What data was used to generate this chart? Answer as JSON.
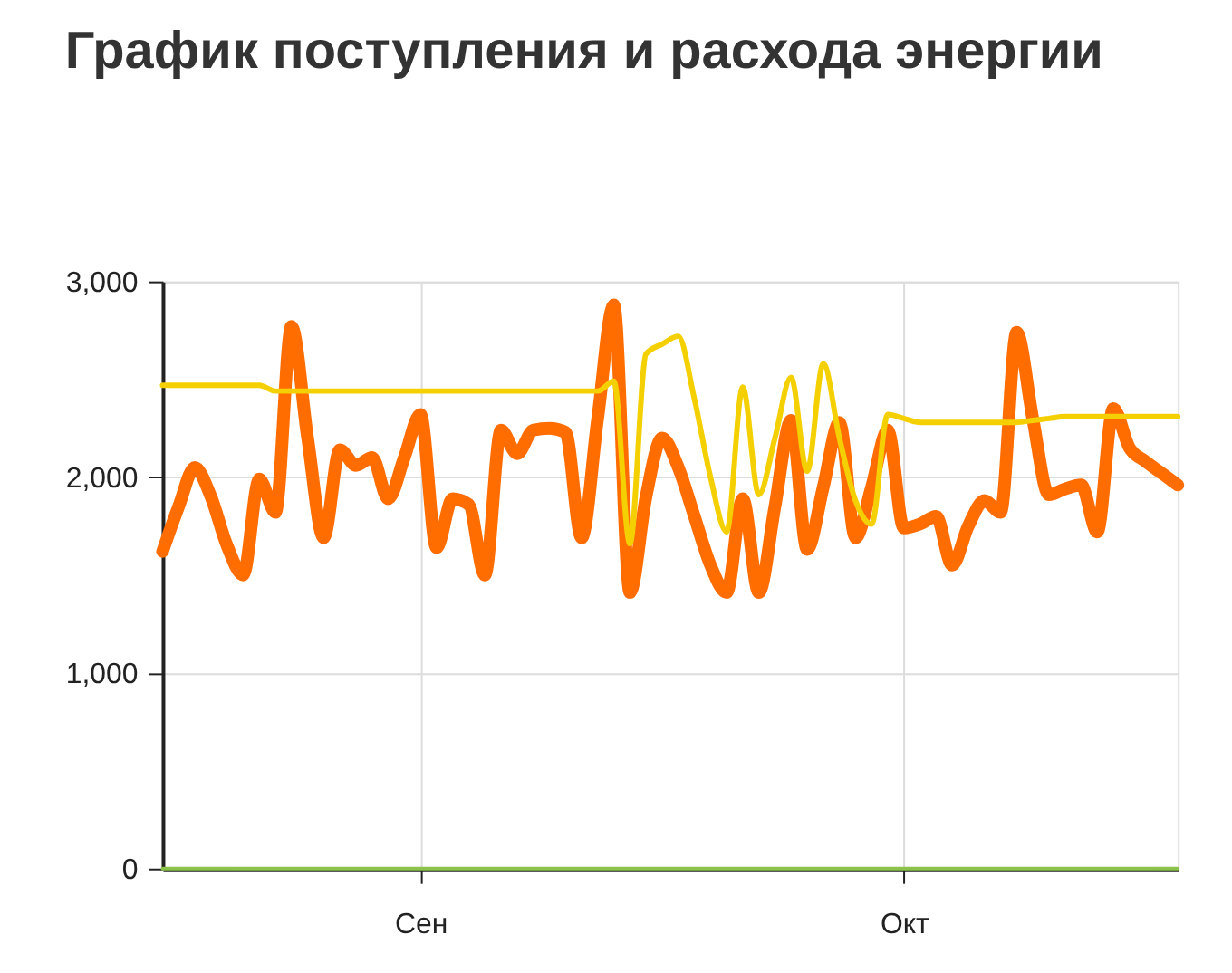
{
  "chart_data": {
    "type": "line",
    "title": "График поступления и расхода энергии",
    "categories": [
      null,
      null,
      null,
      null,
      null,
      null,
      null,
      null,
      null,
      null,
      null,
      null,
      null,
      null,
      null,
      null,
      "Сен",
      null,
      null,
      null,
      null,
      null,
      null,
      null,
      null,
      null,
      null,
      null,
      null,
      null,
      null,
      null,
      null,
      null,
      null,
      null,
      null,
      null,
      null,
      null,
      null,
      null,
      null,
      null,
      null,
      null,
      "Окт",
      null,
      null,
      null,
      null,
      null,
      null,
      null,
      null,
      null,
      null,
      null,
      null,
      null,
      null,
      null,
      null,
      null
    ],
    "ylim": [
      0,
      3000
    ],
    "yticks": [
      {
        "value": 0,
        "label": "0"
      },
      {
        "value": 1000,
        "label": "1,000"
      },
      {
        "value": 2000,
        "label": "2,000"
      },
      {
        "value": 3000,
        "label": "3,000"
      }
    ],
    "grid": true,
    "marker": "none",
    "line_style": "solid",
    "series": [
      {
        "color": "#ff6d00",
        "values": [
          1620,
          1850,
          2050,
          1900,
          1650,
          1500,
          1990,
          1820,
          2770,
          2200,
          1690,
          2140,
          2060,
          2100,
          1890,
          2100,
          2320,
          1640,
          1890,
          1860,
          1500,
          2240,
          2120,
          2240,
          2250,
          2230,
          1690,
          2300,
          2880,
          1410,
          1900,
          2200,
          2050,
          1800,
          1550,
          1410,
          1890,
          1410,
          1850,
          2290,
          1630,
          1950,
          2280,
          1690,
          1950,
          2240,
          1740,
          1760,
          1800,
          1550,
          1750,
          1880,
          1820,
          2740,
          2300,
          1910,
          1940,
          1960,
          1720,
          2350,
          2150,
          2080,
          2020,
          1960
        ]
      },
      {
        "color": "#f5d000",
        "values": [
          2470,
          2470,
          2470,
          2470,
          2470,
          2470,
          2470,
          2440,
          2440,
          2440,
          2440,
          2440,
          2440,
          2440,
          2440,
          2440,
          2440,
          2440,
          2440,
          2440,
          2440,
          2440,
          2440,
          2440,
          2440,
          2440,
          2440,
          2440,
          2490,
          1660,
          2630,
          2680,
          2720,
          2400,
          2000,
          1720,
          2460,
          1910,
          2200,
          2510,
          2030,
          2580,
          2200,
          1880,
          1760,
          2320,
          2300,
          2280,
          2280,
          2280,
          2280,
          2280,
          2280,
          2280,
          2290,
          2300,
          2310,
          2310,
          2310,
          2310,
          2310,
          2310,
          2310,
          2310
        ]
      },
      {
        "color": "#8bc34a",
        "values": [
          0,
          0,
          0,
          0,
          0,
          0,
          0,
          0,
          0,
          0,
          0,
          0,
          0,
          0,
          0,
          0,
          0,
          0,
          0,
          0,
          0,
          0,
          0,
          0,
          0,
          0,
          0,
          0,
          0,
          0,
          0,
          0,
          0,
          0,
          0,
          0,
          0,
          0,
          0,
          0,
          0,
          0,
          0,
          0,
          0,
          0,
          0,
          0,
          0,
          0,
          0,
          0,
          0,
          0,
          0,
          0,
          0,
          0,
          0,
          0,
          0,
          0,
          0,
          0
        ]
      }
    ]
  }
}
